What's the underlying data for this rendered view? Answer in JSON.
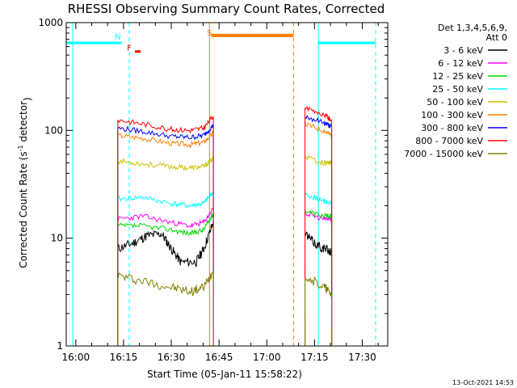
{
  "chart_data": {
    "type": "line",
    "title": "RHESSI Observing Summary Count Rates, Corrected",
    "xlabel": "Start Time (05-Jan-11 15:58:22)",
    "ylabel_main": "Corrected Count Rate (s",
    "ylabel_sup": "-1",
    "ylabel_tail": " detector",
    "ylabel_end": ")",
    "y_scale": "log",
    "ylim": [
      1,
      1000
    ],
    "xlim": [
      "15:57",
      "17:38"
    ],
    "x_ticks": [
      "16:00",
      "16:15",
      "16:30",
      "16:45",
      "17:00",
      "17:15",
      "17:30"
    ],
    "y_ticks": [
      "1",
      "10",
      "100",
      "1000"
    ],
    "legend_header": [
      "Det 1,3,4,5,6,9,",
      "Att 0"
    ],
    "legend_position": "top-right",
    "series": [
      {
        "name": "3 - 6 keV",
        "color": "#000000",
        "seg1": [
          [
            16.22,
            8
          ],
          [
            16.3,
            9
          ],
          [
            16.37,
            10.5
          ],
          [
            16.45,
            11
          ],
          [
            16.5,
            8
          ],
          [
            16.55,
            6
          ],
          [
            16.63,
            6
          ],
          [
            16.67,
            8
          ],
          [
            16.72,
            14
          ]
        ],
        "seg2": [
          [
            17.2,
            11
          ],
          [
            17.25,
            9
          ],
          [
            17.3,
            8
          ],
          [
            17.34,
            7.5
          ]
        ]
      },
      {
        "name": "6 - 12 keV",
        "color": "#ff00ff",
        "seg1": [
          [
            16.22,
            15
          ],
          [
            16.35,
            16
          ],
          [
            16.5,
            14
          ],
          [
            16.6,
            13
          ],
          [
            16.67,
            14
          ],
          [
            16.72,
            19
          ]
        ],
        "seg2": [
          [
            17.2,
            17
          ],
          [
            17.3,
            15
          ],
          [
            17.34,
            15
          ]
        ]
      },
      {
        "name": "12 - 25 keV",
        "color": "#00d800",
        "seg1": [
          [
            16.22,
            13
          ],
          [
            16.35,
            13
          ],
          [
            16.5,
            12
          ],
          [
            16.6,
            11
          ],
          [
            16.67,
            12
          ],
          [
            16.72,
            17
          ]
        ],
        "seg2": [
          [
            17.2,
            18
          ],
          [
            17.3,
            16
          ],
          [
            17.34,
            16
          ]
        ]
      },
      {
        "name": "25 - 50 keV",
        "color": "#00ffff",
        "seg1": [
          [
            16.22,
            23
          ],
          [
            16.35,
            24
          ],
          [
            16.5,
            21
          ],
          [
            16.6,
            20
          ],
          [
            16.67,
            21
          ],
          [
            16.72,
            27
          ]
        ],
        "seg2": [
          [
            17.2,
            26
          ],
          [
            17.3,
            22
          ],
          [
            17.34,
            21
          ]
        ]
      },
      {
        "name": "50 - 100 keV",
        "color": "#d0c000",
        "seg1": [
          [
            16.22,
            52
          ],
          [
            16.35,
            49
          ],
          [
            16.5,
            46
          ],
          [
            16.6,
            45
          ],
          [
            16.67,
            46
          ],
          [
            16.72,
            55
          ]
        ],
        "seg2": [
          [
            17.2,
            57
          ],
          [
            17.3,
            50
          ],
          [
            17.34,
            50
          ]
        ]
      },
      {
        "name": "100 - 300 keV",
        "color": "#ff7f00",
        "seg1": [
          [
            16.22,
            90
          ],
          [
            16.35,
            85
          ],
          [
            16.5,
            76
          ],
          [
            16.6,
            74
          ],
          [
            16.67,
            78
          ],
          [
            16.72,
            95
          ]
        ],
        "seg2": [
          [
            17.2,
            115
          ],
          [
            17.3,
            100
          ],
          [
            17.34,
            90
          ]
        ]
      },
      {
        "name": "300 - 800 keV",
        "color": "#0000ff",
        "seg1": [
          [
            16.22,
            105
          ],
          [
            16.35,
            98
          ],
          [
            16.5,
            88
          ],
          [
            16.6,
            86
          ],
          [
            16.67,
            90
          ],
          [
            16.72,
            112
          ]
        ],
        "seg2": [
          [
            17.2,
            135
          ],
          [
            17.3,
            118
          ],
          [
            17.34,
            108
          ]
        ]
      },
      {
        "name": "800 - 7000 keV",
        "color": "#ff0000",
        "seg1": [
          [
            16.22,
            125
          ],
          [
            16.35,
            115
          ],
          [
            16.5,
            102
          ],
          [
            16.6,
            100
          ],
          [
            16.67,
            105
          ],
          [
            16.72,
            135
          ]
        ],
        "seg2": [
          [
            17.2,
            160
          ],
          [
            17.3,
            140
          ],
          [
            17.34,
            125
          ]
        ]
      },
      {
        "name": "7000 - 15000 keV",
        "color": "#808000",
        "seg1": [
          [
            16.22,
            4.5
          ],
          [
            16.35,
            4
          ],
          [
            16.5,
            3.5
          ],
          [
            16.6,
            3.2
          ],
          [
            16.67,
            3.5
          ],
          [
            16.72,
            5
          ]
        ],
        "seg2": [
          [
            17.2,
            4.5
          ],
          [
            17.3,
            3.5
          ],
          [
            17.34,
            3
          ]
        ]
      }
    ],
    "flags": [
      {
        "label": "N",
        "color": "#00ffff",
        "x": 16.22,
        "y": 700
      },
      {
        "label": "F",
        "color": "#ff0000",
        "x": 16.28,
        "y": 550
      },
      {
        "label": "S",
        "color": "#ff7f00",
        "x": 16.7,
        "y": 760
      }
    ],
    "footer_timestamp": "13-Oct-2021 14:53"
  }
}
